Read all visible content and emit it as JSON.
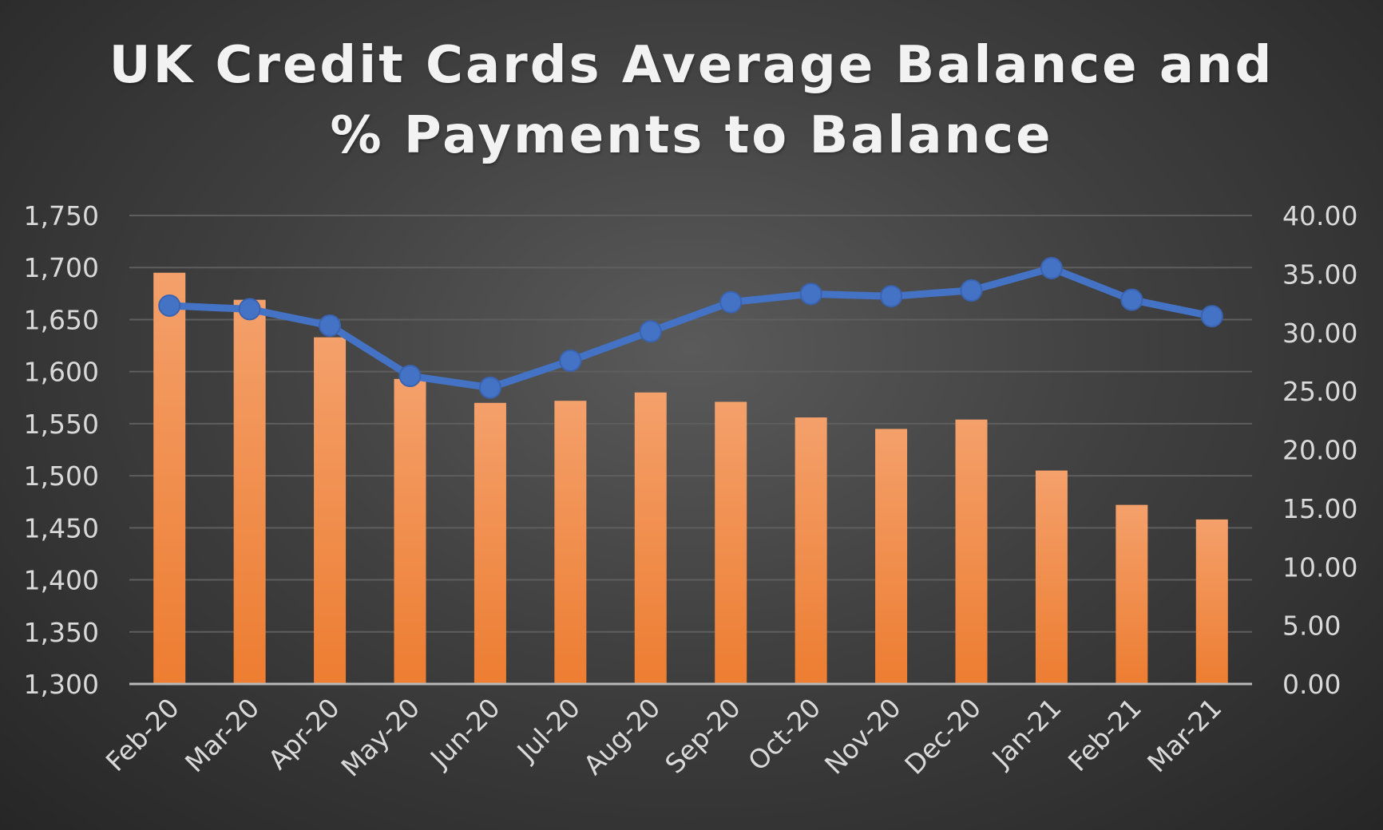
{
  "chart_data": {
    "type": "bar",
    "title_lines": [
      "UK Credit Cards Average Balance and",
      "% Payments to Balance"
    ],
    "categories": [
      "Feb-20",
      "Mar-20",
      "Apr-20",
      "May-20",
      "Jun-20",
      "Jul-20",
      "Aug-20",
      "Sep-20",
      "Oct-20",
      "Nov-20",
      "Dec-20",
      "Jan-21",
      "Feb-21",
      "Mar-21"
    ],
    "series": [
      {
        "type": "bar",
        "axis": "left",
        "values": [
          1695,
          1669,
          1633,
          1593,
          1570,
          1572,
          1580,
          1571,
          1556,
          1545,
          1554,
          1505,
          1472,
          1458
        ]
      },
      {
        "type": "line",
        "axis": "right",
        "values": [
          32.3,
          32.0,
          30.6,
          26.3,
          25.3,
          27.6,
          30.1,
          32.6,
          33.3,
          33.1,
          33.6,
          35.5,
          32.8,
          31.4
        ]
      }
    ],
    "y_left": {
      "min": 1300,
      "max": 1750,
      "step": 50,
      "tick_labels": [
        "1,300",
        "1,350",
        "1,400",
        "1,450",
        "1,500",
        "1,550",
        "1,600",
        "1,650",
        "1,700",
        "1,750"
      ]
    },
    "y_right": {
      "min": 0,
      "max": 40,
      "step": 5,
      "tick_labels": [
        "0.00",
        "5.00",
        "10.00",
        "15.00",
        "20.00",
        "25.00",
        "30.00",
        "35.00",
        "40.00"
      ]
    },
    "grid": true,
    "colors": {
      "bar": "#ed7d31",
      "bar_light": "#f4a06b",
      "line": "#4472c4",
      "grid": "#5e5e5e",
      "axis": "#b8b8b8"
    }
  }
}
